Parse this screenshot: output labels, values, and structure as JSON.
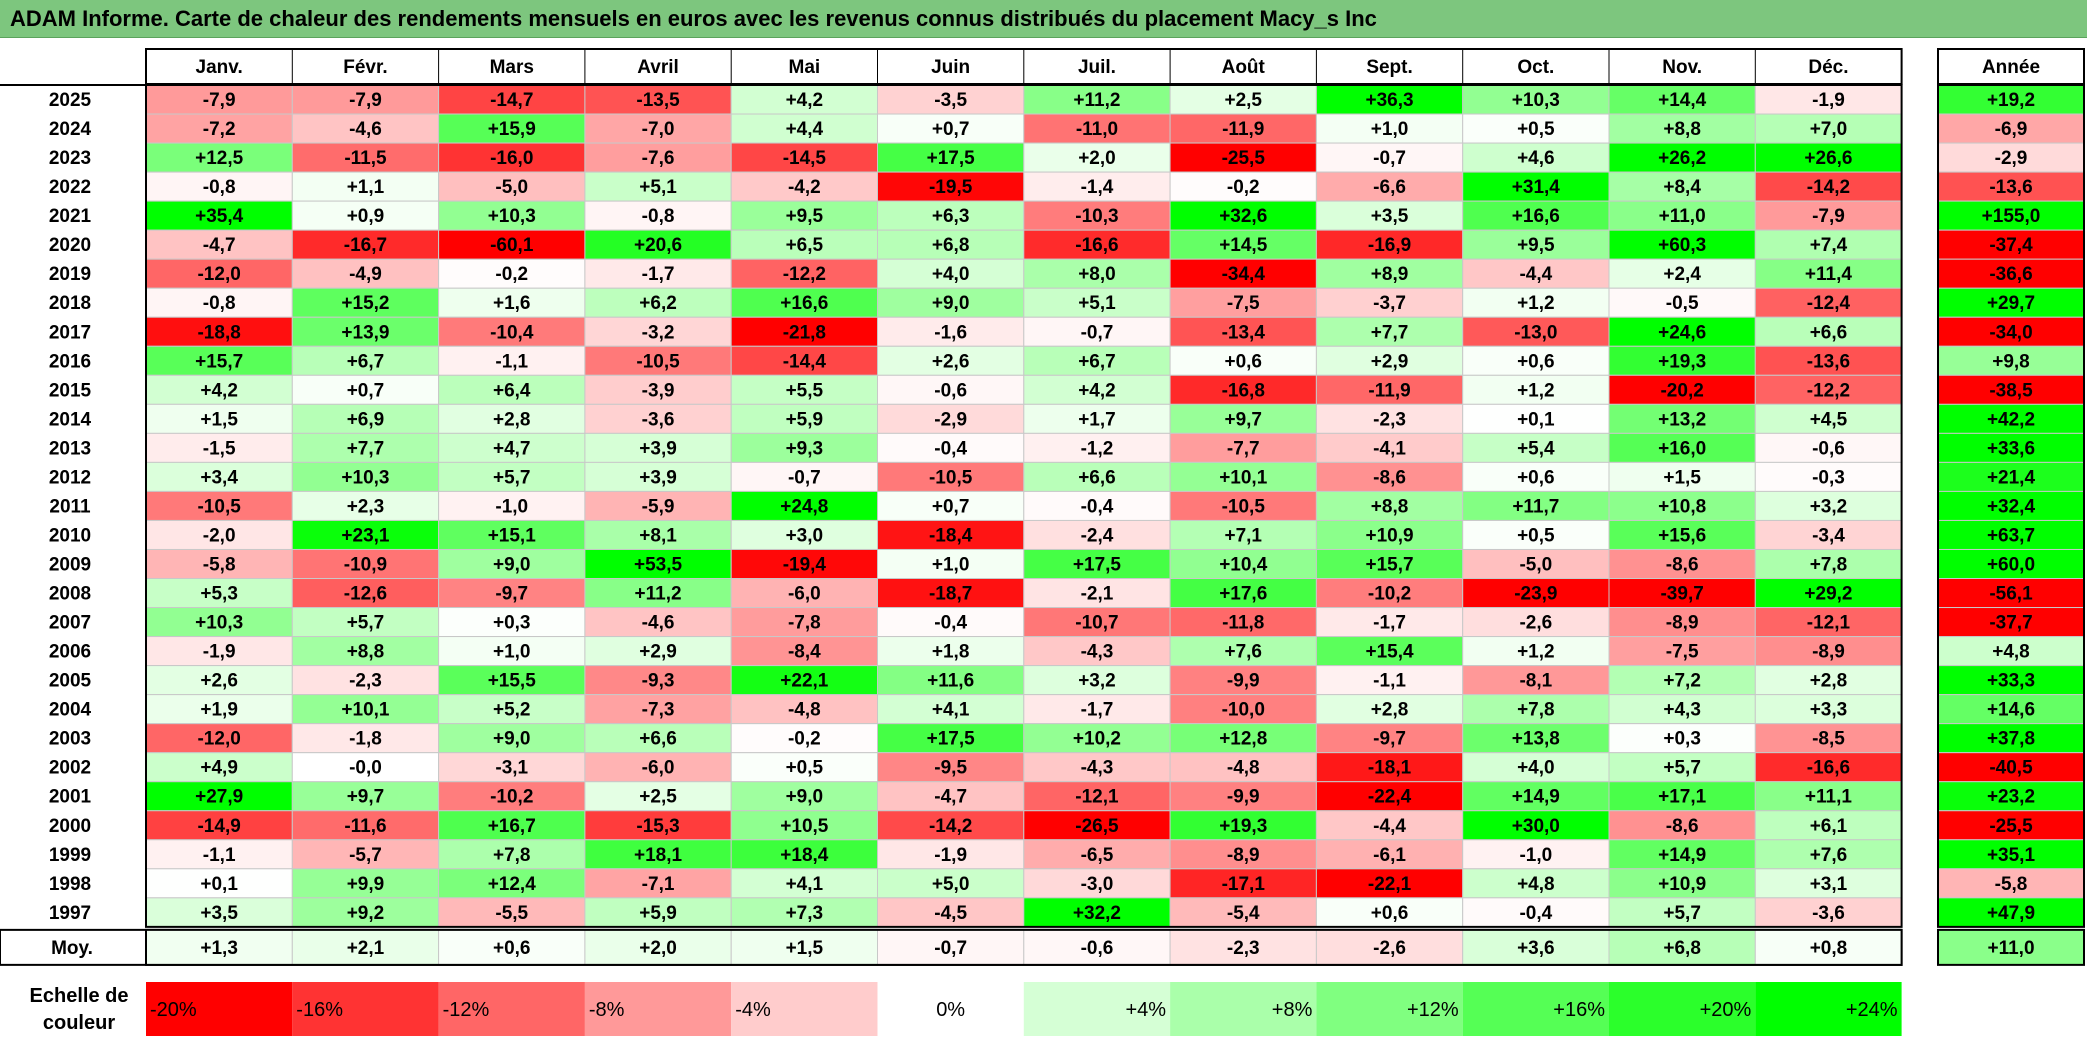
{
  "title": "ADAM Informe. Carte de chaleur des rendements mensuels en euros avec les revenus connus distribués du placement Macy_s Inc",
  "chart_data": {
    "type": "heatmap",
    "title": "ADAM Informe. Carte de chaleur des rendements mensuels en euros avec les revenus connus distribués du placement Macy_s Inc",
    "columns": [
      "Janv.",
      "Févr.",
      "Mars",
      "Avril",
      "Mai",
      "Juin",
      "Juil.",
      "Août",
      "Sept.",
      "Oct.",
      "Nov.",
      "Déc."
    ],
    "year_column_label": "Année",
    "average_row_label": "Moy.",
    "rows": [
      {
        "year": "2025",
        "values": [
          -7.9,
          -7.9,
          -14.7,
          -13.5,
          4.2,
          -3.5,
          11.2,
          2.5,
          36.3,
          10.3,
          14.4,
          -1.9
        ],
        "annual": 19.2
      },
      {
        "year": "2024",
        "values": [
          -7.2,
          -4.6,
          15.9,
          -7.0,
          4.4,
          0.7,
          -11.0,
          -11.9,
          1.0,
          0.5,
          8.8,
          7.0
        ],
        "annual": -6.9
      },
      {
        "year": "2023",
        "values": [
          12.5,
          -11.5,
          -16.0,
          -7.6,
          -14.5,
          17.5,
          2.0,
          -25.5,
          -0.7,
          4.6,
          26.2,
          26.6
        ],
        "annual": -2.9
      },
      {
        "year": "2022",
        "values": [
          -0.8,
          1.1,
          -5.0,
          5.1,
          -4.2,
          -19.5,
          -1.4,
          -0.2,
          -6.6,
          31.4,
          8.4,
          -14.2
        ],
        "annual": -13.6
      },
      {
        "year": "2021",
        "values": [
          35.4,
          0.9,
          10.3,
          -0.8,
          9.5,
          6.3,
          -10.3,
          32.6,
          3.5,
          16.6,
          11.0,
          -7.9
        ],
        "annual": 155.0
      },
      {
        "year": "2020",
        "values": [
          -4.7,
          -16.7,
          -60.1,
          20.6,
          6.5,
          6.8,
          -16.6,
          14.5,
          -16.9,
          9.5,
          60.3,
          7.4
        ],
        "annual": -37.4
      },
      {
        "year": "2019",
        "values": [
          -12.0,
          -4.9,
          -0.2,
          -1.7,
          -12.2,
          4.0,
          8.0,
          -34.4,
          8.9,
          -4.4,
          2.4,
          11.4
        ],
        "annual": -36.6
      },
      {
        "year": "2018",
        "values": [
          -0.8,
          15.2,
          1.6,
          6.2,
          16.6,
          9.0,
          5.1,
          -7.5,
          -3.7,
          1.2,
          -0.5,
          -12.4
        ],
        "annual": 29.7
      },
      {
        "year": "2017",
        "values": [
          -18.8,
          13.9,
          -10.4,
          -3.2,
          -21.8,
          -1.6,
          -0.7,
          -13.4,
          7.7,
          -13.0,
          24.6,
          6.6
        ],
        "annual": -34.0
      },
      {
        "year": "2016",
        "values": [
          15.7,
          6.7,
          -1.1,
          -10.5,
          -14.4,
          2.6,
          6.7,
          0.6,
          2.9,
          0.6,
          19.3,
          -13.6
        ],
        "annual": 9.8
      },
      {
        "year": "2015",
        "values": [
          4.2,
          0.7,
          6.4,
          -3.9,
          5.5,
          -0.6,
          4.2,
          -16.8,
          -11.9,
          1.2,
          -20.2,
          -12.2
        ],
        "annual": -38.5
      },
      {
        "year": "2014",
        "values": [
          1.5,
          6.9,
          2.8,
          -3.6,
          5.9,
          -2.9,
          1.7,
          9.7,
          -2.3,
          0.1,
          13.2,
          4.5
        ],
        "annual": 42.2
      },
      {
        "year": "2013",
        "values": [
          -1.5,
          7.7,
          4.7,
          3.9,
          9.3,
          -0.4,
          -1.2,
          -7.7,
          -4.1,
          5.4,
          16.0,
          -0.6
        ],
        "annual": 33.6
      },
      {
        "year": "2012",
        "values": [
          3.4,
          10.3,
          5.7,
          3.9,
          -0.7,
          -10.5,
          6.6,
          10.1,
          -8.6,
          0.6,
          1.5,
          -0.3
        ],
        "annual": 21.4
      },
      {
        "year": "2011",
        "values": [
          -10.5,
          2.3,
          -1.0,
          -5.9,
          24.8,
          0.7,
          -0.4,
          -10.5,
          8.8,
          11.7,
          10.8,
          3.2
        ],
        "annual": 32.4
      },
      {
        "year": "2010",
        "values": [
          -2.0,
          23.1,
          15.1,
          8.1,
          3.0,
          -18.4,
          -2.4,
          7.1,
          10.9,
          0.5,
          15.6,
          -3.4
        ],
        "annual": 63.7
      },
      {
        "year": "2009",
        "values": [
          -5.8,
          -10.9,
          9.0,
          53.5,
          -19.4,
          1.0,
          17.5,
          10.4,
          15.7,
          -5.0,
          -8.6,
          7.8
        ],
        "annual": 60.0
      },
      {
        "year": "2008",
        "values": [
          5.3,
          -12.6,
          -9.7,
          11.2,
          -6.0,
          -18.7,
          -2.1,
          17.6,
          -10.2,
          -23.9,
          -39.7,
          29.2
        ],
        "annual": -56.1
      },
      {
        "year": "2007",
        "values": [
          10.3,
          5.7,
          0.3,
          -4.6,
          -7.8,
          -0.4,
          -10.7,
          -11.8,
          -1.7,
          -2.6,
          -8.9,
          -12.1
        ],
        "annual": -37.7
      },
      {
        "year": "2006",
        "values": [
          -1.9,
          8.8,
          1.0,
          2.9,
          -8.4,
          1.8,
          -4.3,
          7.6,
          15.4,
          1.2,
          -7.5,
          -8.9
        ],
        "annual": 4.8
      },
      {
        "year": "2005",
        "values": [
          2.6,
          -2.3,
          15.5,
          -9.3,
          22.1,
          11.6,
          3.2,
          -9.9,
          -1.1,
          -8.1,
          7.2,
          2.8
        ],
        "annual": 33.3
      },
      {
        "year": "2004",
        "values": [
          1.9,
          10.1,
          5.2,
          -7.3,
          -4.8,
          4.1,
          -1.7,
          -10.0,
          2.8,
          7.8,
          4.3,
          3.3
        ],
        "annual": 14.6
      },
      {
        "year": "2003",
        "values": [
          -12.0,
          -1.8,
          9.0,
          6.6,
          -0.2,
          17.5,
          10.2,
          12.8,
          -9.7,
          13.8,
          0.3,
          -8.5
        ],
        "annual": 37.8
      },
      {
        "year": "2002",
        "values": [
          4.9,
          -0.0,
          -3.1,
          -6.0,
          0.5,
          -9.5,
          -4.3,
          -4.8,
          -18.1,
          4.0,
          5.7,
          -16.6
        ],
        "annual": -40.5
      },
      {
        "year": "2001",
        "values": [
          27.9,
          9.7,
          -10.2,
          2.5,
          9.0,
          -4.7,
          -12.1,
          -9.9,
          -22.4,
          14.9,
          17.1,
          11.1
        ],
        "annual": 23.2
      },
      {
        "year": "2000",
        "values": [
          -14.9,
          -11.6,
          16.7,
          -15.3,
          10.5,
          -14.2,
          -26.5,
          19.3,
          -4.4,
          30.0,
          -8.6,
          6.1
        ],
        "annual": -25.5
      },
      {
        "year": "1999",
        "values": [
          -1.1,
          -5.7,
          7.8,
          18.1,
          18.4,
          -1.9,
          -6.5,
          -8.9,
          -6.1,
          -1.0,
          14.9,
          7.6
        ],
        "annual": 35.1
      },
      {
        "year": "1998",
        "values": [
          0.1,
          9.9,
          12.4,
          -7.1,
          4.1,
          5.0,
          -3.0,
          -17.1,
          -22.1,
          4.8,
          10.9,
          3.1
        ],
        "annual": -5.8
      },
      {
        "year": "1997",
        "values": [
          3.5,
          9.2,
          -5.5,
          5.9,
          7.3,
          -4.5,
          32.2,
          -5.4,
          0.6,
          -0.4,
          5.7,
          -3.6
        ],
        "annual": 47.9
      }
    ],
    "averages": {
      "values": [
        1.3,
        2.1,
        0.6,
        2.0,
        1.5,
        -0.7,
        -0.6,
        -2.3,
        -2.6,
        3.6,
        6.8,
        0.8
      ],
      "annual": 11.0
    },
    "color_scale": {
      "label_line1": "Echelle de",
      "label_line2": "couleur",
      "stops": [
        "-20%",
        "-16%",
        "-12%",
        "-8%",
        "-4%",
        "0%",
        "+4%",
        "+8%",
        "+12%",
        "+16%",
        "+20%",
        "+24%"
      ],
      "stop_values": [
        -20,
        -16,
        -12,
        -8,
        -4,
        0,
        4,
        8,
        12,
        16,
        20,
        24
      ],
      "negative_color": "#ff0000",
      "positive_color": "#00ff00",
      "neutral_color": "#ffffff"
    }
  }
}
